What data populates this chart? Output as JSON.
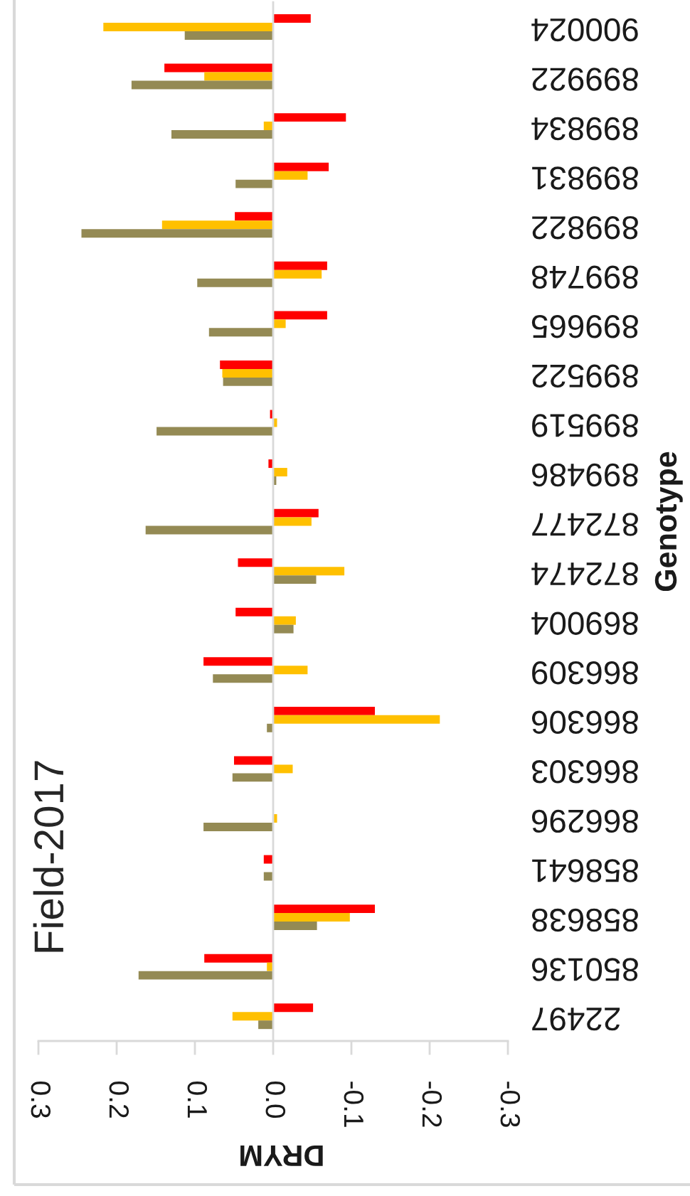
{
  "chart_data": {
    "type": "bar",
    "orientation": "horizontal",
    "title": "Field-2017",
    "xlabel": "DRYM",
    "ylabel": "Genotype",
    "categories": [
      "900024",
      "899922",
      "899834",
      "899831",
      "899822",
      "899748",
      "899665",
      "899522",
      "899519",
      "899486",
      "872477",
      "872474",
      "869004",
      "866309",
      "866306",
      "866303",
      "866296",
      "858641",
      "858638",
      "850136",
      "22497"
    ],
    "series": [
      {
        "color": "#ff0000",
        "values": [
          -0.048,
          0.139,
          -0.093,
          -0.071,
          0.049,
          -0.069,
          -0.069,
          0.068,
          0.004,
          0.006,
          -0.058,
          0.045,
          0.048,
          0.089,
          -0.13,
          0.05,
          null,
          0.012,
          -0.13,
          0.088,
          -0.051
        ]
      },
      {
        "color": "#ffc000",
        "values": [
          0.217,
          0.088,
          0.012,
          -0.044,
          0.142,
          -0.062,
          -0.016,
          0.065,
          -0.005,
          -0.018,
          -0.049,
          -0.091,
          -0.029,
          -0.044,
          -0.213,
          -0.025,
          -0.005,
          null,
          -0.098,
          0.008,
          0.052
        ]
      },
      {
        "color": "#948a54",
        "values": [
          0.113,
          0.181,
          0.13,
          0.048,
          0.245,
          0.097,
          0.082,
          0.064,
          0.149,
          -0.004,
          0.163,
          -0.055,
          -0.026,
          0.077,
          0.008,
          0.052,
          0.089,
          0.012,
          -0.056,
          0.172,
          0.019
        ]
      }
    ],
    "xlim": [
      0.3,
      -0.3
    ],
    "xticks": [
      0.3,
      0.2,
      0.1,
      {
        "value": 0,
        "label": "0.0"
      },
      -0.1,
      -0.2,
      -0.3
    ]
  }
}
